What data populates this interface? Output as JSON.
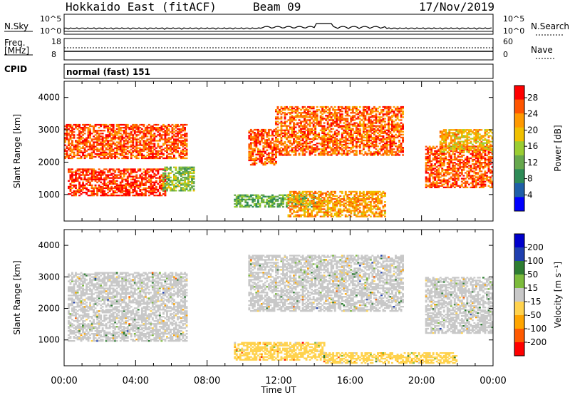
{
  "header": {
    "station": "Hokkaido East (fitACF)",
    "beam": "Beam 09",
    "date": "17/Nov/2019"
  },
  "strips": {
    "nsky_label": "N.Sky",
    "nsky_ticks": [
      "10^5",
      "10^0"
    ],
    "nsearch_label": "N.Search",
    "freq_label_1": "Freq.",
    "freq_label_2": "[MHz]",
    "freq_ticks": [
      "18",
      "8"
    ],
    "nave_label": "Nave",
    "nave_ticks": [
      "60",
      "0"
    ],
    "cpid_label": "CPID",
    "cpid_value": "normal (fast) 151"
  },
  "colors": {
    "power_scale": [
      "#0000ff",
      "#1f5fa8",
      "#2e8b57",
      "#66a84d",
      "#9acd32",
      "#f0c000",
      "#ff9900",
      "#ff5500",
      "#ff0000"
    ],
    "velocity_scale": [
      "#0000cc",
      "#1f3fb0",
      "#2e7d32",
      "#7cbb3c",
      "#c8c8c8",
      "#ffd24d",
      "#ffa500",
      "#ff5a00",
      "#ff0000"
    ]
  },
  "chart_data": [
    {
      "type": "heatmap",
      "name_panel": "power",
      "xlabel": "Time UT",
      "ylabel": "Slant Range [km]",
      "x_tick_labels": [
        "00:00",
        "04:00",
        "08:00",
        "12:00",
        "16:00",
        "20:00",
        "00:00"
      ],
      "xlim": [
        0,
        24
      ],
      "ylim": [
        180,
        4500
      ],
      "y_ticks": [
        1000,
        2000,
        3000,
        4000
      ],
      "colorbar_label": "Power [dB]",
      "colorbar_ticks": [
        4,
        8,
        12,
        16,
        20,
        24,
        28
      ],
      "colorbar_range": [
        0,
        31
      ],
      "regions": [
        {
          "t": [
            0.2,
            5.6
          ],
          "r": [
            950,
            1800
          ],
          "level": 28
        },
        {
          "t": [
            0.0,
            6.8
          ],
          "r": [
            2100,
            3150
          ],
          "level": 26
        },
        {
          "t": [
            5.5,
            7.2
          ],
          "r": [
            1100,
            1850
          ],
          "level": 14
        },
        {
          "t": [
            10.3,
            11.8
          ],
          "r": [
            1900,
            3000
          ],
          "level": 26
        },
        {
          "t": [
            11.8,
            19.0
          ],
          "r": [
            2200,
            3700
          ],
          "level": 25
        },
        {
          "t": [
            9.5,
            14.0
          ],
          "r": [
            600,
            1000
          ],
          "level": 12
        },
        {
          "t": [
            12.5,
            18.0
          ],
          "r": [
            300,
            1100
          ],
          "level": 22
        },
        {
          "t": [
            20.2,
            24.0
          ],
          "r": [
            1200,
            2500
          ],
          "level": 26
        },
        {
          "t": [
            21.0,
            24.0
          ],
          "r": [
            2300,
            3000
          ],
          "level": 20
        }
      ]
    },
    {
      "type": "heatmap",
      "name_panel": "velocity",
      "xlabel": "Time UT",
      "ylabel": "Slant Range [km]",
      "x_tick_labels": [
        "00:00",
        "04:00",
        "08:00",
        "12:00",
        "16:00",
        "20:00",
        "00:00"
      ],
      "xlim": [
        0,
        24
      ],
      "ylim": [
        180,
        4500
      ],
      "y_ticks": [
        1000,
        2000,
        3000,
        4000
      ],
      "colorbar_label": "Velocity [m s⁻¹]",
      "colorbar_ticks": [
        200,
        100,
        50,
        15,
        -15,
        -50,
        -100,
        -200
      ],
      "colorbar_range": [
        -250,
        250
      ],
      "regions": [
        {
          "t": [
            0.2,
            6.8
          ],
          "r": [
            950,
            3150
          ],
          "level": 0
        },
        {
          "t": [
            10.3,
            19.0
          ],
          "r": [
            1900,
            3700
          ],
          "level": 0
        },
        {
          "t": [
            9.5,
            14.5
          ],
          "r": [
            350,
            900
          ],
          "level": -60
        },
        {
          "t": [
            14.5,
            22.0
          ],
          "r": [
            250,
            600
          ],
          "level": -40
        },
        {
          "t": [
            20.2,
            24.0
          ],
          "r": [
            1200,
            3000
          ],
          "level": 0
        }
      ]
    }
  ]
}
